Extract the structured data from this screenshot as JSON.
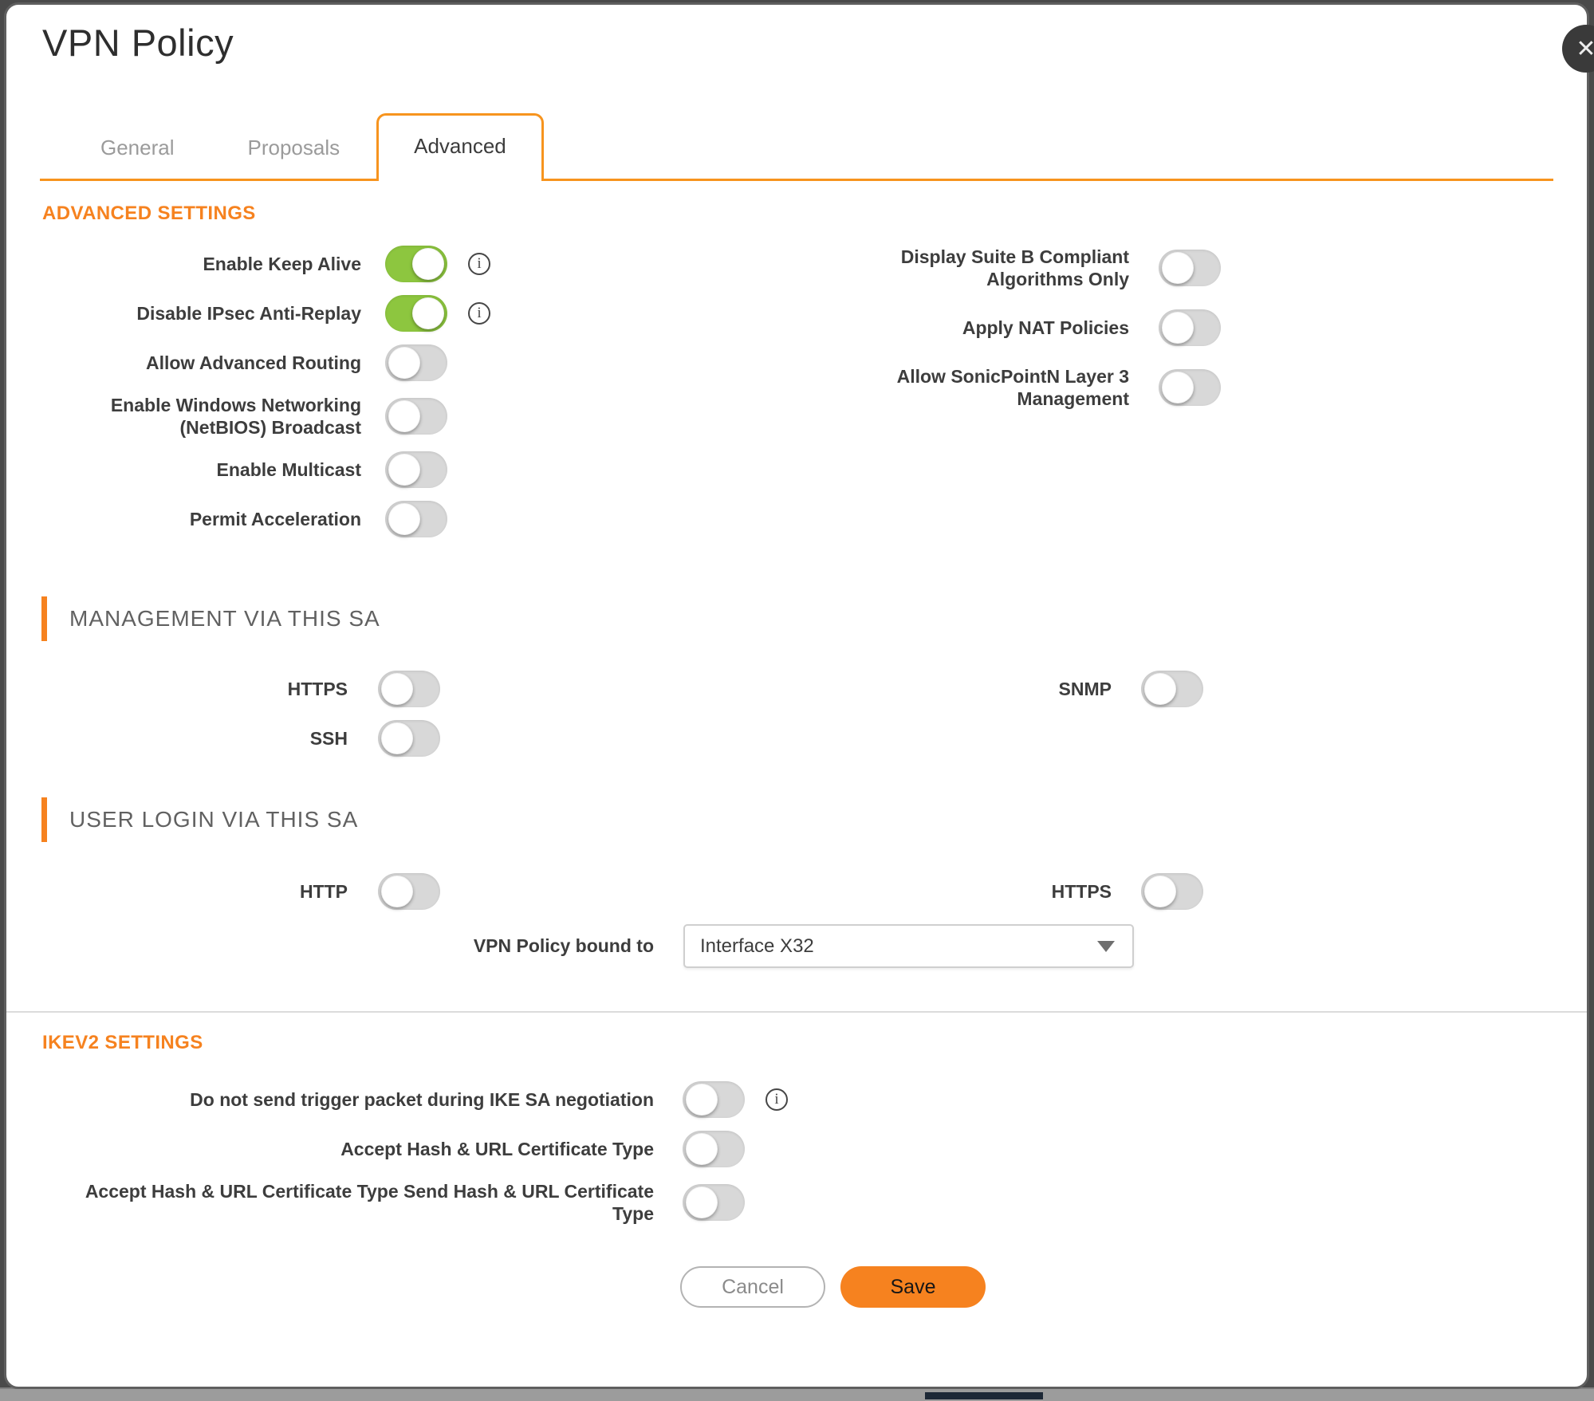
{
  "title": "VPN Policy",
  "close_icon": "✕",
  "info_icon_glyph": "i",
  "tabs": [
    {
      "label": "General",
      "active": false
    },
    {
      "label": "Proposals",
      "active": false
    },
    {
      "label": "Advanced",
      "active": true
    }
  ],
  "advanced_settings": {
    "heading": "ADVANCED SETTINGS",
    "left_toggles": [
      {
        "label": "Enable Keep Alive",
        "on": true,
        "info": true
      },
      {
        "label": "Disable IPsec Anti-Replay",
        "on": true,
        "info": true
      },
      {
        "label": "Allow Advanced Routing",
        "on": false,
        "info": false
      },
      {
        "label": "Enable Windows Networking (NetBIOS) Broadcast",
        "on": false,
        "info": false
      },
      {
        "label": "Enable Multicast",
        "on": false,
        "info": false
      },
      {
        "label": "Permit Acceleration",
        "on": false,
        "info": false
      }
    ],
    "right_toggles": [
      {
        "label": "Display Suite B Compliant Algorithms Only",
        "on": false,
        "info": false
      },
      {
        "label": "Apply NAT Policies",
        "on": false,
        "info": false
      },
      {
        "label": "Allow SonicPointN Layer 3 Management",
        "on": false,
        "info": false
      }
    ]
  },
  "management_sa": {
    "heading": "MANAGEMENT VIA THIS SA",
    "left_toggles": [
      {
        "label": "HTTPS",
        "on": false,
        "info": false
      },
      {
        "label": "SSH",
        "on": false,
        "info": false
      }
    ],
    "right_toggles": [
      {
        "label": "SNMP",
        "on": false,
        "info": false
      }
    ]
  },
  "user_login_sa": {
    "heading": "USER LOGIN VIA THIS SA",
    "left_toggles": [
      {
        "label": "HTTP",
        "on": false,
        "info": false
      }
    ],
    "right_toggles": [
      {
        "label": "HTTPS",
        "on": false,
        "info": false
      }
    ],
    "bound_to": {
      "label": "VPN Policy bound to",
      "value": "Interface X32"
    }
  },
  "ikev2_settings": {
    "heading": "IKEV2 SETTINGS",
    "toggles": [
      {
        "label": "Do not send trigger packet during IKE SA negotiation",
        "on": false,
        "info": true
      },
      {
        "label": "Accept Hash & URL Certificate Type",
        "on": false,
        "info": false
      },
      {
        "label": "Accept Hash & URL Certificate Type Send Hash & URL Certificate Type",
        "on": false,
        "info": false
      }
    ]
  },
  "footer": {
    "cancel_label": "Cancel",
    "save_label": "Save"
  },
  "colors": {
    "accent_orange": "#F6821F",
    "tab_border_orange": "#F7941E",
    "toggle_on_green": "#8DC63F",
    "toggle_off_gray": "#D8D8D8",
    "label_text": "#3D3D3D",
    "section_header_gray": "#616161"
  }
}
